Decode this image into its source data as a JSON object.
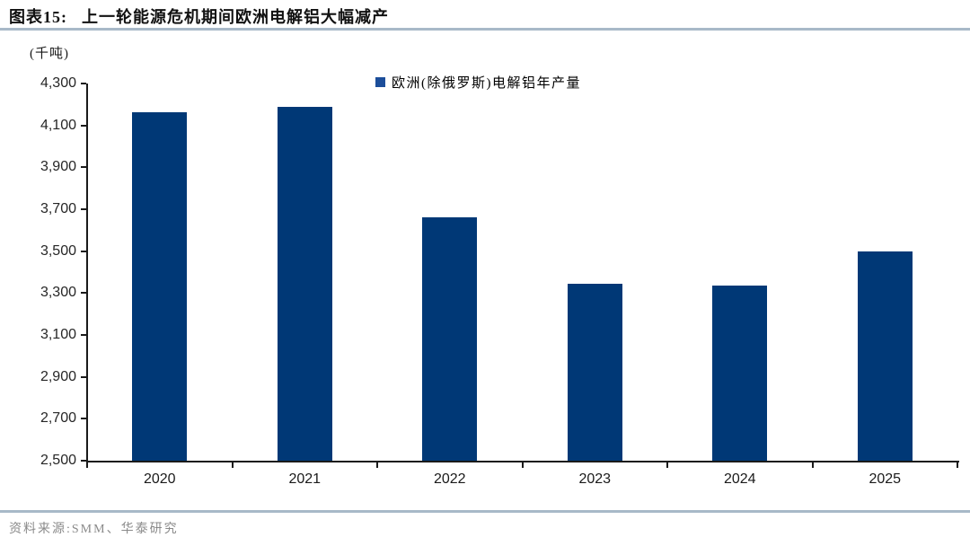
{
  "header": {
    "title_prefix": "图表15:",
    "title": "上一轮能源危机期间欧洲电解铝大幅减产"
  },
  "chart": {
    "unit_label": "(千吨)"
  },
  "chart_data": {
    "type": "bar",
    "title": "上一轮能源危机期间欧洲电解铝大幅减产",
    "unit": "千吨",
    "categories": [
      "2020",
      "2021",
      "2022",
      "2023",
      "2024",
      "2025"
    ],
    "series": [
      {
        "name": "欧洲(除俄罗斯)电解铝年产量",
        "values": [
          4165,
          4190,
          3660,
          3345,
          3335,
          3500
        ],
        "color": "#003876"
      }
    ],
    "ylim": [
      2500,
      4300
    ],
    "y_tick_step": 200,
    "y_tick_labels": [
      "2,500",
      "2,700",
      "2,900",
      "3,100",
      "3,300",
      "3,500",
      "3,700",
      "3,900",
      "4,100",
      "4,300"
    ],
    "grid": false,
    "legend_position": "top-center"
  },
  "footer": {
    "source": "资料来源:SMM、华泰研究"
  },
  "colors": {
    "bar": "#003876",
    "legend_swatch": "#1c4e9a",
    "axis": "#1a1a1a",
    "rule": "#a8b9c8",
    "source_text": "#8a8a8a"
  }
}
